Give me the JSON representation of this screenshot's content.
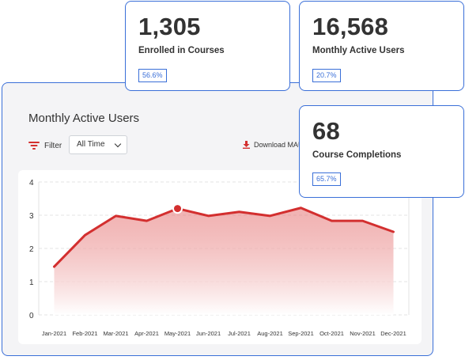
{
  "panel": {
    "title": "Monthly Active Users",
    "filter_label": "Filter",
    "filter_value": "All Time",
    "download_label": "Download MAU CSV"
  },
  "stats": [
    {
      "value": "1,305",
      "label": "Enrolled in Courses",
      "badge": "56.6%"
    },
    {
      "value": "16,568",
      "label": "Monthly Active Users",
      "badge": "20.7%"
    },
    {
      "value": "68",
      "label": "Course Completions",
      "badge": "65.7%"
    }
  ],
  "colors": {
    "accent": "#d32f2f",
    "border": "#3a6fd8"
  },
  "chart_data": {
    "type": "area",
    "categories": [
      "Jan-2021",
      "Feb-2021",
      "Mar-2021",
      "Apr-2021",
      "May-2021",
      "Jun-2021",
      "Jul-2021",
      "Aug-2021",
      "Sep-2021",
      "Oct-2021",
      "Nov-2021",
      "Dec-2021"
    ],
    "series": [
      {
        "values": [
          1.45,
          2.4,
          2.98,
          2.83,
          3.2,
          2.98,
          3.1,
          2.98,
          3.22,
          2.83,
          2.83,
          2.5
        ]
      }
    ],
    "highlight_index": 4,
    "yticks": [
      0,
      1,
      2,
      3,
      4
    ],
    "ylim": [
      0,
      4
    ],
    "grid": true
  }
}
